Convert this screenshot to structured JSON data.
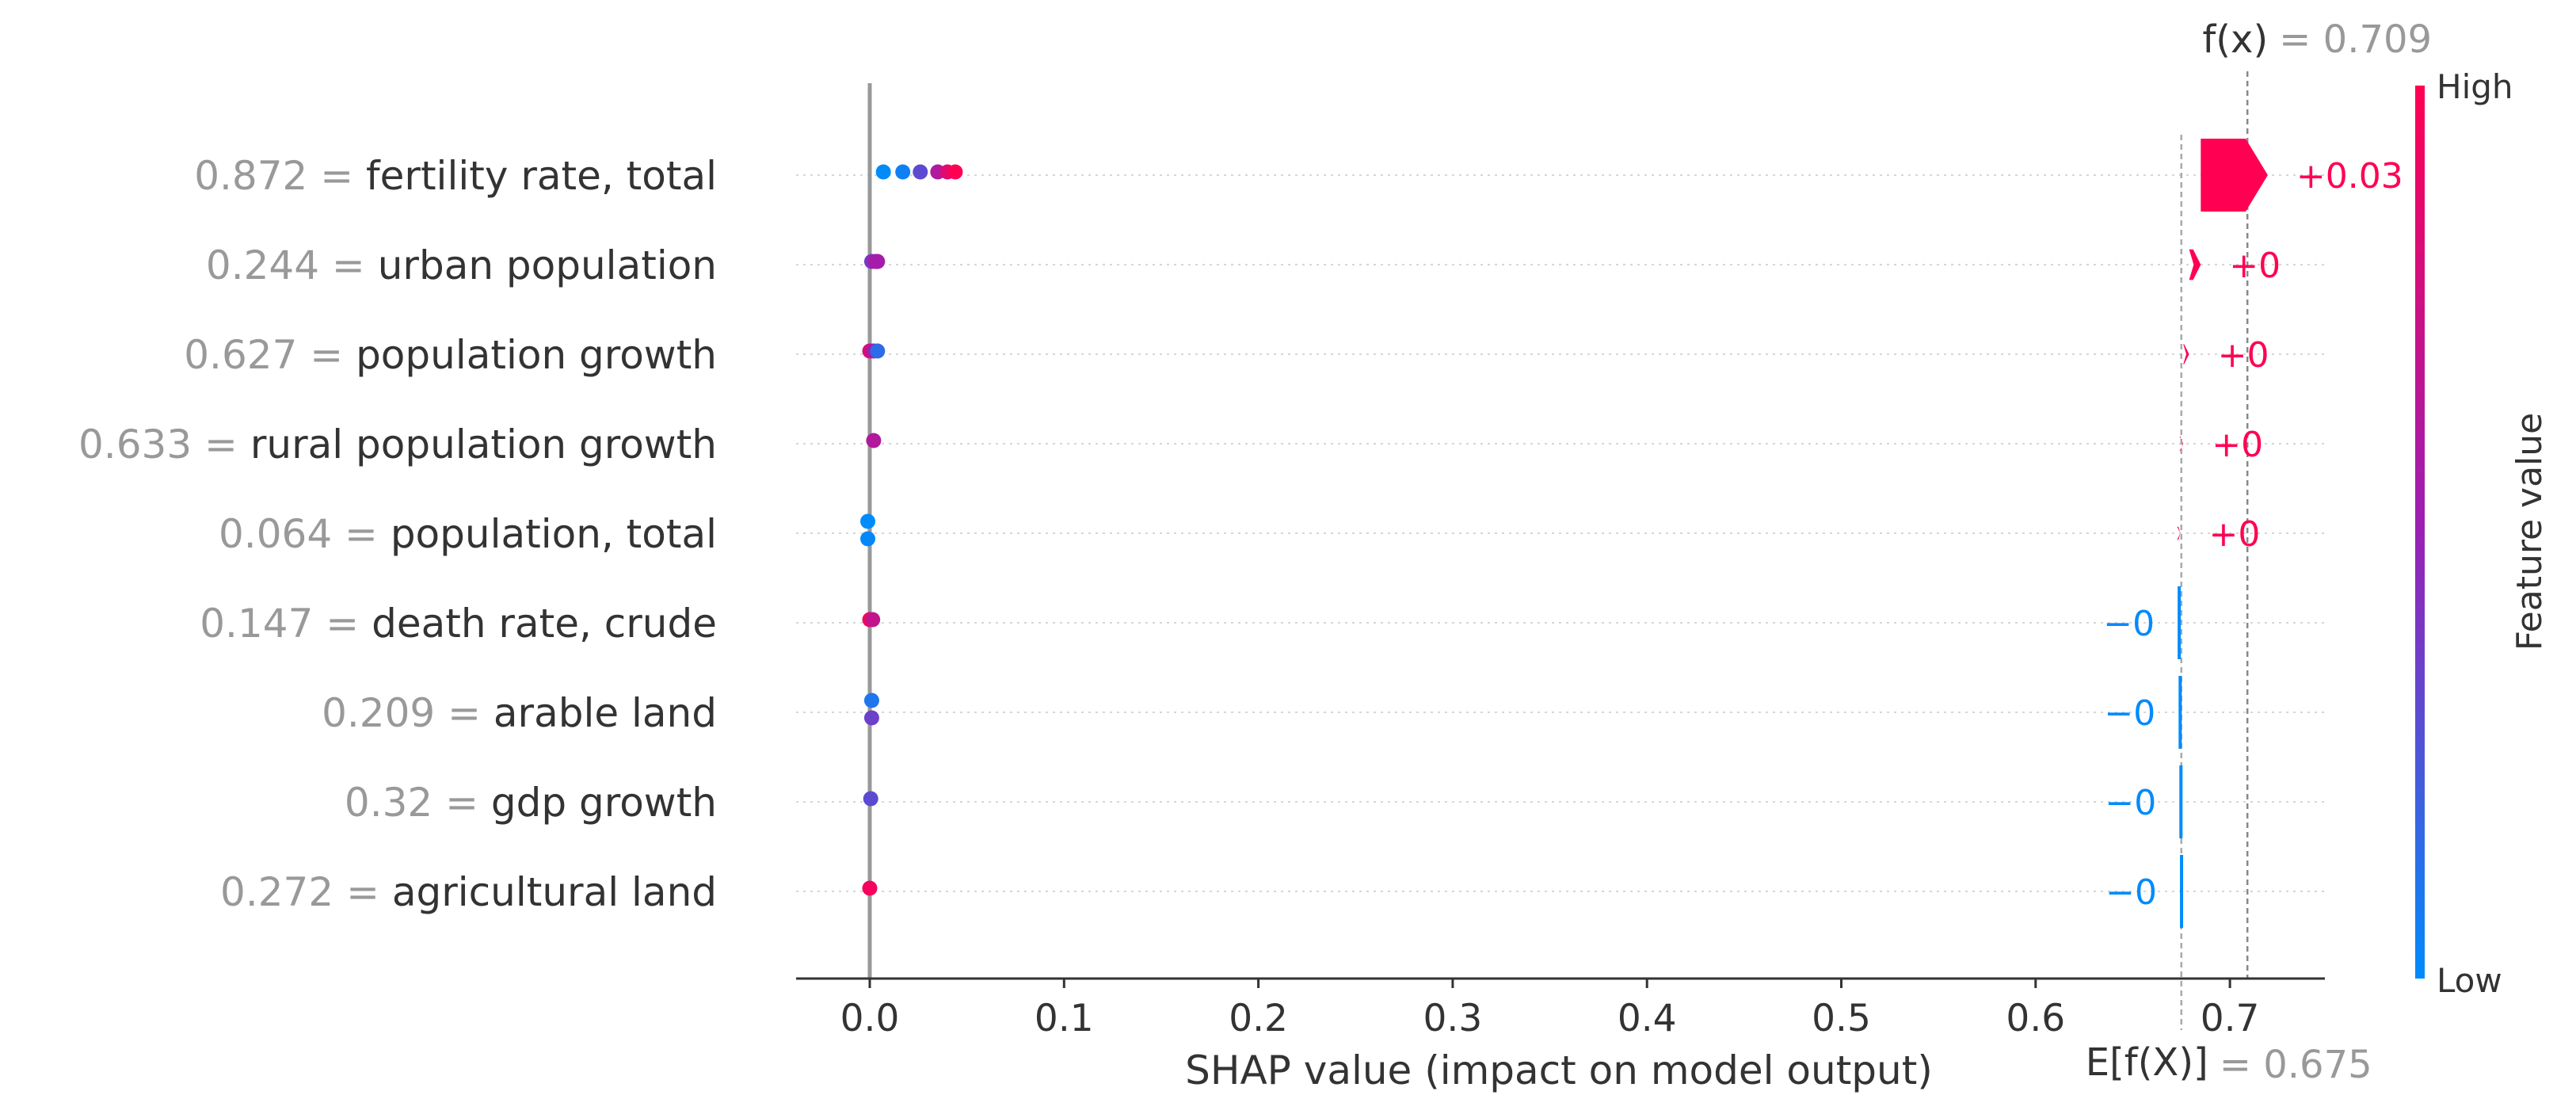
{
  "chart_data": {
    "type": "scatter",
    "subtype": "shap-beeswarm-with-decision",
    "title": "",
    "xlabel": "SHAP value (impact on model output)",
    "ylabel": "",
    "xlim": [
      -0.038,
      0.75
    ],
    "x_ticks": [
      0.0,
      0.1,
      0.2,
      0.3,
      0.4,
      0.5,
      0.6,
      0.7
    ],
    "x_tick_labels": [
      "0.0",
      "0.1",
      "0.2",
      "0.3",
      "0.4",
      "0.5",
      "0.6",
      "0.7"
    ],
    "grid": "horizontal dotted per feature",
    "base_value": 0.675,
    "base_value_label": "= 0.675",
    "base_value_symbol": "E[f(X)]",
    "output_value": 0.709,
    "output_value_label": "= 0.709",
    "output_value_symbol": "f(x)",
    "colorbar": {
      "title": "Feature value",
      "high_label": "High",
      "low_label": "Low",
      "low_color": "#008bfb",
      "high_color": "#ff0052",
      "mid_color": "#9a20b4"
    },
    "features": [
      {
        "name": "fertility rate, total",
        "value": "0.872",
        "contribution": 0.0345,
        "contribution_label": "+0.03",
        "sign": "positive",
        "points": [
          {
            "x": 0.007,
            "v": 0.0
          },
          {
            "x": 0.017,
            "v": 0.05
          },
          {
            "x": 0.026,
            "v": 0.3
          },
          {
            "x": 0.035,
            "v": 0.6
          },
          {
            "x": 0.04,
            "v": 0.85
          },
          {
            "x": 0.044,
            "v": 1.0
          }
        ]
      },
      {
        "name": "urban population",
        "value": "0.244",
        "contribution": 0.006,
        "contribution_label": "+0",
        "sign": "positive",
        "points": [
          {
            "x": 0.001,
            "v": 0.4
          },
          {
            "x": 0.003,
            "v": 0.6
          },
          {
            "x": 0.004,
            "v": 0.55
          }
        ]
      },
      {
        "name": "population growth",
        "value": "0.627",
        "contribution": 0.003,
        "contribution_label": "+0",
        "sign": "positive",
        "points": [
          {
            "x": 0.0,
            "v": 0.8
          },
          {
            "x": 0.002,
            "v": 0.55
          },
          {
            "x": 0.004,
            "v": 0.15
          }
        ]
      },
      {
        "name": "rural population growth",
        "value": "0.633",
        "contribution": 0.0015,
        "contribution_label": "+0",
        "sign": "positive",
        "points": [
          {
            "x": 0.002,
            "v": 0.62
          }
        ]
      },
      {
        "name": "population, total",
        "value": "0.064",
        "contribution": 0.001,
        "contribution_label": "+0",
        "sign": "positive",
        "points": [
          {
            "x": -0.001,
            "v": 0.0,
            "dy": -1
          },
          {
            "x": -0.001,
            "v": 0.02,
            "dy": 1
          }
        ]
      },
      {
        "name": "death rate, crude",
        "value": "0.147",
        "contribution": -0.0005,
        "contribution_label": "−0",
        "sign": "negative",
        "points": [
          {
            "x": 0.0,
            "v": 0.95
          },
          {
            "x": 0.0015,
            "v": 0.7
          }
        ]
      },
      {
        "name": "arable land",
        "value": "0.209",
        "contribution": -0.0004,
        "contribution_label": "−0",
        "sign": "negative",
        "points": [
          {
            "x": 0.001,
            "v": 0.1,
            "dy": -1
          },
          {
            "x": 0.001,
            "v": 0.35,
            "dy": 1
          }
        ]
      },
      {
        "name": "gdp growth",
        "value": "0.32",
        "contribution": -0.0003,
        "contribution_label": "−0",
        "sign": "negative",
        "points": [
          {
            "x": 0.0005,
            "v": 0.3
          }
        ]
      },
      {
        "name": "agricultural land",
        "value": "0.272",
        "contribution": -0.0003,
        "contribution_label": "−0",
        "sign": "negative",
        "points": [
          {
            "x": 0.0,
            "v": 0.95
          }
        ]
      }
    ]
  }
}
